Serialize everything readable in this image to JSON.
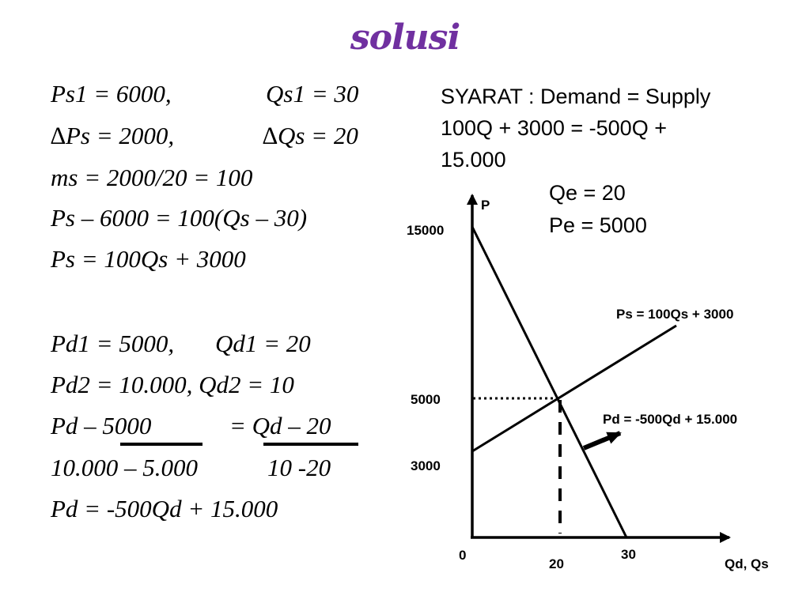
{
  "title": "solusi",
  "left_equations": [
    {
      "a": "Ps1 = 6000,",
      "b": "Qs1 = 30"
    },
    {
      "a": "∆Ps = 2000,",
      "b": "∆Qs = 20"
    },
    {
      "a": "ms = 2000/20 = 100",
      "b": ""
    },
    {
      "a": "Ps – 6000 = 100(Qs – 30)",
      "b": ""
    },
    {
      "a": "Ps = 100Qs + 3000",
      "b": ""
    },
    {
      "a": "Pd1 = 5000,",
      "b": "Qd1 = 20"
    },
    {
      "a": "Pd2 = 10.000, Qd2 = 10",
      "b": ""
    },
    {
      "a": "Pd – 5000",
      "b": "=  Qd – 20"
    },
    {
      "a": "10.000 – 5.000",
      "b": "10 -20"
    },
    {
      "a": "Pd = -500Qd + 15.000",
      "b": ""
    }
  ],
  "syarat": {
    "line1": "SYARAT : Demand = Supply",
    "line2": "100Q + 3000  = -500Q +",
    "line3": "15.000"
  },
  "result": {
    "qe": "Qe = 20",
    "pe": "Pe = 5000"
  },
  "graph": {
    "y_axis_label": "P",
    "x_axis_label": "Qd, Qs",
    "origin_label": "0",
    "y_ticks": [
      "15000",
      "5000",
      "3000"
    ],
    "x_ticks": [
      "20",
      "30"
    ],
    "supply_label": "Ps = 100Qs + 3000",
    "demand_label": "Pd = -500Qd + 15.000"
  }
}
